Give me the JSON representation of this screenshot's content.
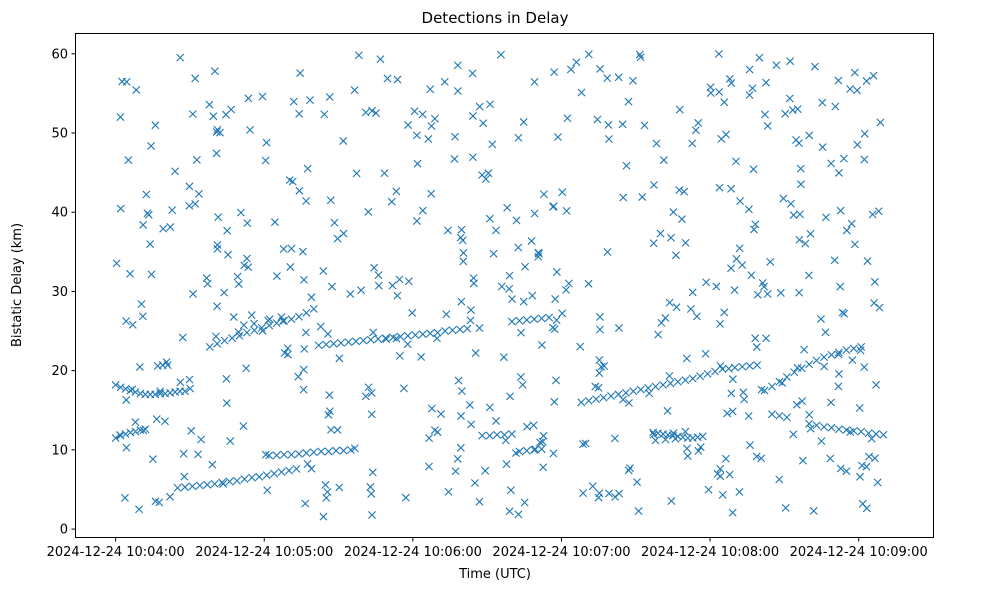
{
  "chart_data": {
    "type": "scatter",
    "title": "Detections in Delay",
    "xlabel": "Time (UTC)",
    "ylabel": "Bistatic Delay (km)",
    "x_unit": "seconds after 2024-12-24 10:04:00",
    "xlim": [
      -16,
      330
    ],
    "ylim": [
      -1,
      62.5
    ],
    "xticks": [
      {
        "value": 0,
        "label": "2024-12-24 10:04:00"
      },
      {
        "value": 60,
        "label": "2024-12-24 10:05:00"
      },
      {
        "value": 120,
        "label": "2024-12-24 10:06:00"
      },
      {
        "value": 180,
        "label": "2024-12-24 10:07:00"
      },
      {
        "value": 240,
        "label": "2024-12-24 10:08:00"
      },
      {
        "value": 300,
        "label": "2024-12-24 10:09:00"
      }
    ],
    "yticks": [
      {
        "value": 0,
        "label": "0"
      },
      {
        "value": 10,
        "label": "10"
      },
      {
        "value": 20,
        "label": "20"
      },
      {
        "value": 30,
        "label": "30"
      },
      {
        "value": 40,
        "label": "40"
      },
      {
        "value": 50,
        "label": "50"
      },
      {
        "value": 60,
        "label": "60"
      }
    ],
    "marker": "x",
    "color": "#1f77b4",
    "tracks": [
      {
        "name": "track-1",
        "points": [
          [
            0,
            18.2
          ],
          [
            2,
            17.9
          ],
          [
            4,
            17.7
          ],
          [
            6,
            17.5
          ],
          [
            8,
            17.3
          ],
          [
            10,
            17.1
          ],
          [
            12,
            17.0
          ],
          [
            14,
            17.0
          ],
          [
            16,
            17.0
          ],
          [
            18,
            17.1
          ],
          [
            20,
            17.1
          ],
          [
            22,
            17.2
          ],
          [
            24,
            17.3
          ],
          [
            26,
            17.4
          ],
          [
            28,
            17.4
          ],
          [
            17,
            20.6
          ],
          [
            19,
            20.7
          ],
          [
            21,
            20.7
          ]
        ]
      },
      {
        "name": "track-2",
        "points": [
          [
            0,
            11.5
          ],
          [
            2,
            11.8
          ],
          [
            4,
            12.0
          ],
          [
            6,
            12.2
          ],
          [
            8,
            12.3
          ],
          [
            10,
            12.5
          ],
          [
            12,
            12.6
          ]
        ]
      },
      {
        "name": "track-3",
        "points": [
          [
            25,
            5.2
          ],
          [
            28,
            5.3
          ],
          [
            31,
            5.4
          ],
          [
            34,
            5.5
          ],
          [
            37,
            5.6
          ],
          [
            40,
            5.7
          ],
          [
            43,
            5.9
          ],
          [
            46,
            6.0
          ],
          [
            49,
            6.1
          ],
          [
            52,
            6.3
          ],
          [
            55,
            6.5
          ],
          [
            58,
            6.6
          ],
          [
            61,
            6.8
          ],
          [
            64,
            7.0
          ],
          [
            67,
            7.2
          ],
          [
            70,
            7.4
          ],
          [
            73,
            7.6
          ]
        ]
      },
      {
        "name": "track-4",
        "points": [
          [
            62,
            9.3
          ],
          [
            65,
            9.3
          ],
          [
            68,
            9.4
          ],
          [
            71,
            9.4
          ],
          [
            74,
            9.5
          ],
          [
            77,
            9.6
          ],
          [
            80,
            9.7
          ],
          [
            83,
            9.8
          ],
          [
            86,
            9.8
          ],
          [
            89,
            9.9
          ],
          [
            92,
            9.9
          ],
          [
            95,
            10.0
          ]
        ]
      },
      {
        "name": "track-5",
        "points": [
          [
            38,
            23.0
          ],
          [
            41,
            23.4
          ],
          [
            44,
            23.8
          ],
          [
            47,
            24.1
          ],
          [
            50,
            24.4
          ],
          [
            53,
            24.8
          ],
          [
            56,
            25.1
          ],
          [
            59,
            25.4
          ],
          [
            62,
            25.7
          ],
          [
            65,
            26.0
          ],
          [
            68,
            26.3
          ],
          [
            71,
            26.5
          ],
          [
            74,
            26.8
          ],
          [
            77,
            27.3
          ],
          [
            80,
            27.8
          ]
        ]
      },
      {
        "name": "track-6",
        "points": [
          [
            82,
            23.2
          ],
          [
            85,
            23.3
          ],
          [
            88,
            23.4
          ],
          [
            91,
            23.5
          ],
          [
            94,
            23.6
          ],
          [
            97,
            23.7
          ],
          [
            100,
            23.8
          ],
          [
            103,
            23.9
          ],
          [
            106,
            24.0
          ],
          [
            109,
            24.1
          ],
          [
            112,
            24.2
          ],
          [
            115,
            24.3
          ],
          [
            118,
            24.4
          ],
          [
            121,
            24.5
          ],
          [
            124,
            24.6
          ],
          [
            127,
            24.7
          ],
          [
            130,
            24.8
          ],
          [
            133,
            25.0
          ],
          [
            136,
            25.1
          ],
          [
            139,
            25.2
          ],
          [
            142,
            25.3
          ]
        ]
      },
      {
        "name": "track-7",
        "points": [
          [
            148,
            11.8
          ],
          [
            151,
            11.8
          ],
          [
            154,
            11.9
          ],
          [
            157,
            11.9
          ],
          [
            160,
            12.0
          ],
          [
            163,
            9.8
          ],
          [
            166,
            9.9
          ],
          [
            169,
            10.0
          ],
          [
            172,
            10.1
          ]
        ]
      },
      {
        "name": "track-8",
        "points": [
          [
            160,
            26.2
          ],
          [
            163,
            26.3
          ],
          [
            166,
            26.4
          ],
          [
            169,
            26.5
          ],
          [
            172,
            26.6
          ],
          [
            175,
            26.7
          ]
        ]
      },
      {
        "name": "track-9",
        "points": [
          [
            188,
            16.0
          ],
          [
            191,
            16.2
          ],
          [
            194,
            16.4
          ],
          [
            197,
            16.6
          ],
          [
            200,
            16.8
          ],
          [
            203,
            17.0
          ],
          [
            206,
            17.2
          ],
          [
            209,
            17.4
          ],
          [
            212,
            17.6
          ],
          [
            215,
            17.8
          ],
          [
            218,
            18.0
          ],
          [
            221,
            18.2
          ],
          [
            224,
            18.4
          ],
          [
            227,
            18.6
          ],
          [
            230,
            18.8
          ],
          [
            233,
            19.0
          ],
          [
            236,
            19.3
          ],
          [
            239,
            19.6
          ],
          [
            242,
            19.9
          ],
          [
            245,
            20.2
          ]
        ]
      },
      {
        "name": "track-10",
        "points": [
          [
            217,
            12.2
          ],
          [
            219,
            12.1
          ],
          [
            221,
            12.0
          ],
          [
            223,
            11.9
          ],
          [
            225,
            11.8
          ],
          [
            227,
            11.7
          ],
          [
            229,
            11.6
          ],
          [
            231,
            11.5
          ],
          [
            233,
            11.5
          ],
          [
            235,
            11.6
          ],
          [
            237,
            11.7
          ],
          [
            218,
            11.2
          ],
          [
            222,
            11.3
          ],
          [
            226,
            11.4
          ],
          [
            230,
            12.3
          ]
        ]
      },
      {
        "name": "track-11",
        "points": [
          [
            262,
            17.5
          ],
          [
            265,
            18.0
          ],
          [
            268,
            18.6
          ],
          [
            271,
            19.2
          ],
          [
            274,
            19.8
          ],
          [
            277,
            20.3
          ],
          [
            280,
            20.8
          ],
          [
            283,
            21.3
          ],
          [
            286,
            21.7
          ],
          [
            289,
            22.0
          ],
          [
            292,
            22.3
          ],
          [
            295,
            22.6
          ],
          [
            298,
            22.8
          ],
          [
            301,
            23.0
          ]
        ]
      },
      {
        "name": "track-12",
        "points": [
          [
            280,
            13.3
          ],
          [
            283,
            13.1
          ],
          [
            286,
            12.9
          ],
          [
            289,
            12.8
          ],
          [
            292,
            12.6
          ],
          [
            295,
            12.5
          ],
          [
            298,
            12.4
          ],
          [
            301,
            12.3
          ],
          [
            304,
            12.1
          ],
          [
            307,
            12.0
          ],
          [
            310,
            11.9
          ]
        ]
      },
      {
        "name": "track-13",
        "points": [
          [
            250,
            20.4
          ],
          [
            253,
            20.5
          ],
          [
            256,
            20.6
          ],
          [
            259,
            20.7
          ],
          [
            265,
            14.5
          ],
          [
            268,
            14.3
          ],
          [
            271,
            14.1
          ]
        ]
      }
    ],
    "noise": {
      "count": 560,
      "x_range": [
        0,
        309
      ],
      "y_range": [
        1.5,
        60
      ],
      "seed": 20241224
    }
  }
}
